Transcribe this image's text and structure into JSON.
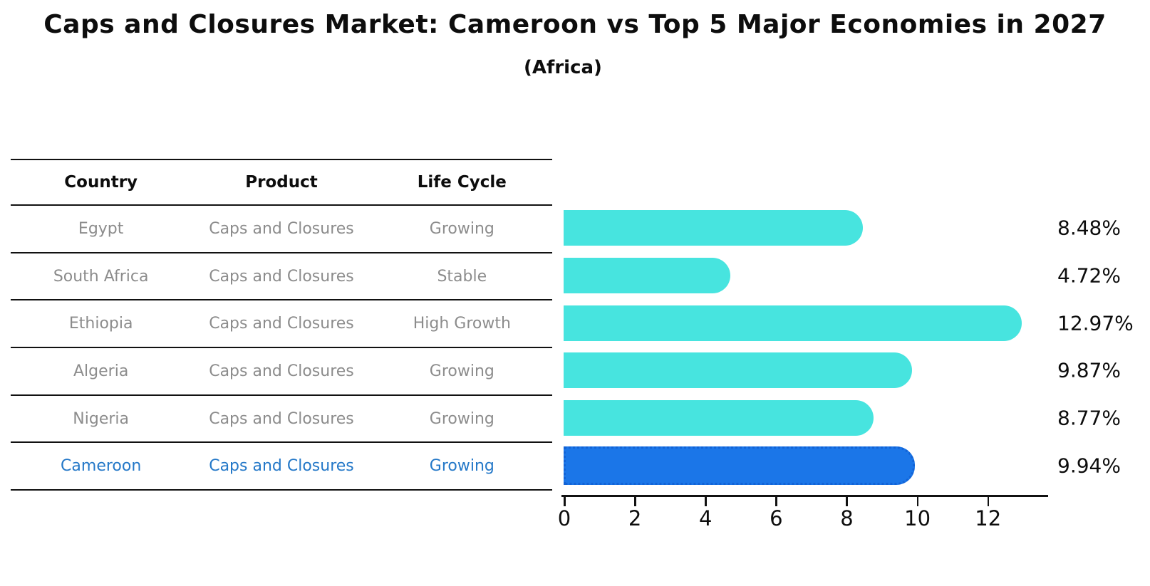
{
  "header": {
    "title": "Caps and Closures Market: Cameroon vs Top 5 Major Economies in 2027",
    "subtitle": "(Africa)"
  },
  "table": {
    "headers": [
      "Country",
      "Product",
      "Life Cycle"
    ],
    "rows": [
      {
        "country": "Egypt",
        "product": "Caps and Closures",
        "life_cycle": "Growing"
      },
      {
        "country": "South Africa",
        "product": "Caps and Closures",
        "life_cycle": "Stable"
      },
      {
        "country": "Ethiopia",
        "product": "Caps and Closures",
        "life_cycle": "High Growth"
      },
      {
        "country": "Algeria",
        "product": "Caps and Closures",
        "life_cycle": "Growing"
      },
      {
        "country": "Nigeria",
        "product": "Caps and Closures",
        "life_cycle": "Growing"
      },
      {
        "country": "Cameroon",
        "product": "Caps and Closures",
        "life_cycle": "Growing"
      }
    ],
    "highlight_row": "Cameroon"
  },
  "chart_data": {
    "type": "bar",
    "orientation": "horizontal",
    "title": "Caps and Closures Market: Cameroon vs Top 5 Major Economies in 2027 (Africa)",
    "categories": [
      "Egypt",
      "South Africa",
      "Ethiopia",
      "Algeria",
      "Nigeria",
      "Cameroon"
    ],
    "values": [
      8.48,
      4.72,
      12.97,
      9.87,
      8.77,
      9.94
    ],
    "value_labels": [
      "8.48%",
      "4.72%",
      "12.97%",
      "9.87%",
      "8.77%",
      "9.94%"
    ],
    "xlabel": "",
    "ylabel": "",
    "xlim": [
      0,
      13.7
    ],
    "xticks": [
      0,
      2,
      4,
      6,
      8,
      10,
      12
    ],
    "grid": false,
    "legend": null,
    "highlight_index": 5
  },
  "colors": {
    "bar": "#47E4DF",
    "highlight_bar": "#1B76E8",
    "highlight_border": "#1263D6",
    "table_text": "#8C8C8C",
    "highlight_text": "#2478C8",
    "axis": "#111111"
  }
}
